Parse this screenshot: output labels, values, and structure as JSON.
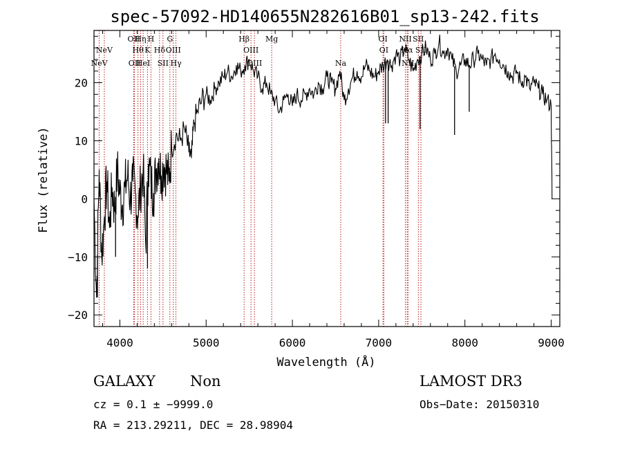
{
  "chart_data": {
    "type": "line",
    "title": "spec-57092-HD140655N282616B01_sp13-242.fits",
    "xlabel": "Wavelength (Å)",
    "ylabel": "Flux (relative)",
    "xlim": [
      3700,
      9100
    ],
    "ylim": [
      -22,
      29
    ],
    "xticks": [
      4000,
      5000,
      6000,
      7000,
      8000,
      9000
    ],
    "xtick_labels": [
      "4000",
      "5000",
      "6000",
      "7000",
      "8000",
      "9000"
    ],
    "yticks": [
      -20,
      -10,
      0,
      10,
      20
    ],
    "ytick_labels": [
      "−20",
      "−10",
      "0",
      "10",
      "20"
    ],
    "series": [
      {
        "x": [
          3700,
          3730,
          3760,
          3790,
          3820,
          3850,
          3880,
          3910,
          3940,
          3970,
          4000,
          4030,
          4060,
          4090,
          4120,
          4150,
          4180,
          4210,
          4240,
          4270,
          4300,
          4330,
          4360,
          4390,
          4420,
          4450,
          4480,
          4510,
          4540,
          4570,
          4600,
          4650,
          4700,
          4750,
          4800,
          4830,
          4860,
          4900,
          4950,
          5000,
          5050,
          5100,
          5150,
          5200,
          5250,
          5300,
          5350,
          5400,
          5450,
          5500,
          5550,
          5600,
          5650,
          5700,
          5750,
          5800,
          5850,
          5900,
          5950,
          6000,
          6050,
          6100,
          6150,
          6200,
          6250,
          6300,
          6350,
          6400,
          6450,
          6500,
          6550,
          6600,
          6650,
          6700,
          6750,
          6800,
          6850,
          6900,
          6950,
          7000,
          7050,
          7100,
          7150,
          7200,
          7250,
          7300,
          7350,
          7400,
          7450,
          7500,
          7550,
          7600,
          7650,
          7700,
          7750,
          7800,
          7850,
          7900,
          7950,
          8000,
          8050,
          8100,
          8150,
          8200,
          8250,
          8300,
          8350,
          8400,
          8450,
          8500,
          8550,
          8600,
          8650,
          8700,
          8750,
          8800,
          8850,
          8900,
          8950,
          9000,
          9010
        ],
        "y": [
          0,
          -17,
          5,
          -10,
          -3,
          3,
          -5,
          2,
          -2,
          5,
          1,
          -1,
          2,
          4,
          0,
          3,
          1,
          -3,
          2,
          5,
          -8,
          6,
          3,
          1,
          5,
          7,
          4,
          6,
          5,
          3,
          9,
          11,
          10,
          12,
          8,
          7,
          13,
          15,
          17,
          18,
          17,
          19,
          20,
          21,
          22,
          21,
          23,
          22,
          23,
          24,
          22,
          21,
          19,
          20,
          18,
          17,
          15,
          17,
          18,
          16,
          18,
          17,
          18,
          19,
          18,
          20,
          19,
          21,
          20,
          19,
          22,
          17,
          19,
          21,
          22,
          21,
          23,
          22,
          21,
          22,
          23,
          24,
          23,
          25,
          24,
          26,
          24,
          22,
          24,
          25,
          26,
          24,
          25,
          27,
          25,
          26,
          24,
          22,
          23,
          24,
          23,
          24,
          25,
          24,
          23,
          24,
          25,
          24,
          23,
          22,
          21,
          22,
          20,
          21,
          19,
          20,
          19,
          18,
          17,
          16,
          0
        ]
      }
    ],
    "spikes": [
      {
        "x": 3740,
        "y": -17
      },
      {
        "x": 3950,
        "y": -10
      },
      {
        "x": 4320,
        "y": -12
      },
      {
        "x": 7080,
        "y": 13
      },
      {
        "x": 7110,
        "y": 13
      },
      {
        "x": 7480,
        "y": 12
      },
      {
        "x": 7880,
        "y": 11
      },
      {
        "x": 8050,
        "y": 15
      },
      {
        "x": 9010,
        "y": 0
      }
    ],
    "emission_lines": [
      {
        "x": 3760,
        "label": "NeV",
        "row": 2
      },
      {
        "x": 3820,
        "label": "NeV",
        "row": 1
      },
      {
        "x": 4160,
        "label": "OII",
        "row": 0
      },
      {
        "x": 4170,
        "label": "OII",
        "row": 2
      },
      {
        "x": 4210,
        "label": "Hθ",
        "row": 1
      },
      {
        "x": 4240,
        "label": "Hη",
        "row": 0
      },
      {
        "x": 4270,
        "label": "HeI",
        "row": 2
      },
      {
        "x": 4320,
        "label": "K",
        "row": 1
      },
      {
        "x": 4360,
        "label": "H",
        "row": 0
      },
      {
        "x": 4460,
        "label": "Hδ",
        "row": 1
      },
      {
        "x": 4500,
        "label": "SII",
        "row": 2
      },
      {
        "x": 4580,
        "label": "G",
        "row": 0
      },
      {
        "x": 4620,
        "label": "OIII",
        "row": 1
      },
      {
        "x": 4650,
        "label": "Hγ",
        "row": 2
      },
      {
        "x": 5440,
        "label": "Hβ",
        "row": 0
      },
      {
        "x": 5520,
        "label": "OIII",
        "row": 1
      },
      {
        "x": 5560,
        "label": "OIII",
        "row": 2
      },
      {
        "x": 5760,
        "label": "Mg",
        "row": 0
      },
      {
        "x": 6560,
        "label": "Na",
        "row": 2
      },
      {
        "x": 7050,
        "label": "OI",
        "row": 0
      },
      {
        "x": 7060,
        "label": "OI",
        "row": 1
      },
      {
        "x": 7310,
        "label": "NII",
        "row": 0
      },
      {
        "x": 7330,
        "label": "Hα",
        "row": 1
      },
      {
        "x": 7340,
        "label": "NII",
        "row": 2
      },
      {
        "x": 7460,
        "label": "SII",
        "row": 0
      },
      {
        "x": 7490,
        "label": "SII",
        "row": 1
      }
    ]
  },
  "info": {
    "class": "GALAXY",
    "subclass": "Non",
    "survey": "LAMOST DR3",
    "cz": "cz = 0.1 ± −9999.0",
    "obs_date": "Obs−Date: 20150310",
    "coords": "RA = 213.29211, DEC =  28.98904"
  }
}
